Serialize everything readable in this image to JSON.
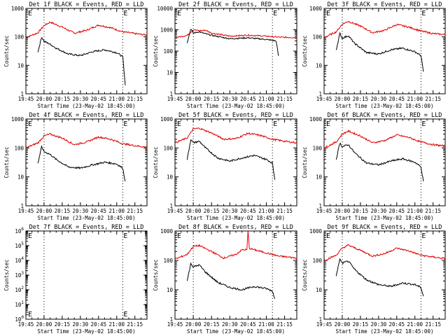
{
  "x_tick_labels": [
    "19:45",
    "20:00",
    "20:15",
    "20:30",
    "20:45",
    "21:00",
    "21:15"
  ],
  "x_axis_label": "Start Time (23-May-02 18:45:00)",
  "colors": {
    "events": "#000000",
    "lld": "#e00000",
    "axes": "#000000",
    "background": "#ffffff"
  },
  "chart_data": [
    {
      "type": "line",
      "title": "Det 1f BLACK = Events, RED = LLD",
      "ylabel": "Counts/sec",
      "yscale": "log",
      "ylim": [
        1,
        1000
      ],
      "y_tick_labels": [
        "1",
        "10",
        "100",
        "1000"
      ],
      "x_range": [
        "19:45",
        "21:25"
      ],
      "vlines": [
        "20:00",
        "21:05"
      ],
      "marker_labels": [
        "E",
        "E"
      ],
      "series": [
        {
          "name": "LLD",
          "color": "#e00000",
          "x": [
            "19:45",
            "19:55",
            "20:00",
            "20:05",
            "20:15",
            "20:25",
            "20:35",
            "20:45",
            "20:55",
            "21:05",
            "21:15",
            "21:25"
          ],
          "y": [
            95,
            140,
            250,
            330,
            220,
            135,
            170,
            260,
            210,
            150,
            130,
            115
          ]
        },
        {
          "name": "Events",
          "color": "#000000",
          "x": [
            "19:55",
            "19:58",
            "20:00",
            "20:05",
            "20:10",
            "20:20",
            "20:30",
            "20:40",
            "20:50",
            "21:00",
            "21:05",
            "21:07"
          ],
          "y": [
            30,
            100,
            70,
            55,
            40,
            25,
            22,
            30,
            35,
            28,
            20,
            2
          ]
        }
      ]
    },
    {
      "type": "line",
      "title": "Det 2f BLACK = Events, RED = LLD",
      "ylabel": "Counts/sec",
      "yscale": "log",
      "ylim": [
        1,
        10000
      ],
      "y_tick_labels": [
        "1",
        "10",
        "100",
        "1000",
        "10000"
      ],
      "x_range": [
        "19:45",
        "21:25"
      ],
      "vlines": [
        "20:00",
        "21:05"
      ],
      "marker_labels": [
        "E",
        "E"
      ],
      "series": [
        {
          "name": "LLD",
          "color": "#e00000",
          "x": [
            "19:45",
            "19:55",
            "20:00",
            "20:05",
            "20:10",
            "20:15",
            "20:30",
            "20:45",
            "21:00",
            "21:10",
            "21:25"
          ],
          "y": [
            420,
            550,
            1000,
            900,
            950,
            700,
            500,
            560,
            500,
            450,
            430
          ]
        },
        {
          "name": "Events",
          "color": "#000000",
          "x": [
            "19:55",
            "19:58",
            "20:00",
            "20:05",
            "20:10",
            "20:15",
            "20:30",
            "20:45",
            "21:00",
            "21:08",
            "21:10"
          ],
          "y": [
            250,
            1100,
            700,
            800,
            650,
            550,
            380,
            420,
            350,
            300,
            60
          ]
        }
      ]
    },
    {
      "type": "line",
      "title": "Det 3f BLACK = Events, RED = LLD",
      "ylabel": "Counts/sec",
      "yscale": "log",
      "ylim": [
        1,
        1000
      ],
      "y_tick_labels": [
        "1",
        "10",
        "100",
        "1000"
      ],
      "x_range": [
        "19:45",
        "21:25"
      ],
      "vlines": [
        "20:00",
        "21:05"
      ],
      "marker_labels": [
        "E",
        "E"
      ],
      "series": [
        {
          "name": "LLD",
          "color": "#e00000",
          "x": [
            "19:45",
            "19:55",
            "20:00",
            "20:05",
            "20:15",
            "20:25",
            "20:35",
            "20:45",
            "20:55",
            "21:05",
            "21:15",
            "21:25"
          ],
          "y": [
            95,
            150,
            280,
            350,
            240,
            140,
            170,
            270,
            220,
            160,
            130,
            120
          ]
        },
        {
          "name": "Events",
          "color": "#000000",
          "x": [
            "19:55",
            "19:58",
            "20:00",
            "20:05",
            "20:10",
            "20:20",
            "20:30",
            "20:40",
            "20:50",
            "21:00",
            "21:05",
            "21:07"
          ],
          "y": [
            35,
            130,
            90,
            110,
            60,
            28,
            25,
            35,
            40,
            30,
            22,
            6
          ]
        }
      ]
    },
    {
      "type": "line",
      "title": "Det 4f BLACK = Events, RED = LLD",
      "ylabel": "Counts/sec",
      "yscale": "log",
      "ylim": [
        1,
        1000
      ],
      "y_tick_labels": [
        "1",
        "10",
        "100",
        "1000"
      ],
      "x_range": [
        "19:45",
        "21:25"
      ],
      "vlines": [
        "20:00",
        "21:05"
      ],
      "marker_labels": [
        "E",
        "E"
      ],
      "series": [
        {
          "name": "LLD",
          "color": "#e00000",
          "x": [
            "19:45",
            "19:55",
            "20:00",
            "20:05",
            "20:15",
            "20:25",
            "20:35",
            "20:45",
            "20:55",
            "21:05",
            "21:15",
            "21:25"
          ],
          "y": [
            100,
            150,
            260,
            300,
            220,
            130,
            160,
            240,
            200,
            140,
            120,
            105
          ]
        },
        {
          "name": "Events",
          "color": "#000000",
          "x": [
            "19:55",
            "19:58",
            "20:00",
            "20:05",
            "20:10",
            "20:20",
            "20:30",
            "20:40",
            "20:50",
            "21:00",
            "21:05",
            "21:07"
          ],
          "y": [
            30,
            110,
            75,
            60,
            40,
            22,
            20,
            26,
            32,
            28,
            20,
            7
          ]
        }
      ]
    },
    {
      "type": "line",
      "title": "Det 5f BLACK = Events, RED = LLD",
      "ylabel": "Counts/sec",
      "yscale": "log",
      "ylim": [
        1,
        1000
      ],
      "y_tick_labels": [
        "1",
        "10",
        "100",
        "1000"
      ],
      "x_range": [
        "19:45",
        "21:25"
      ],
      "vlines": [
        "20:00",
        "21:05"
      ],
      "marker_labels": [
        "E",
        "E"
      ],
      "series": [
        {
          "name": "LLD",
          "color": "#e00000",
          "x": [
            "19:45",
            "19:55",
            "20:00",
            "20:05",
            "20:15",
            "20:25",
            "20:35",
            "20:45",
            "20:55",
            "21:05",
            "21:15",
            "21:25"
          ],
          "y": [
            150,
            220,
            450,
            480,
            330,
            200,
            210,
            320,
            270,
            200,
            170,
            150
          ]
        },
        {
          "name": "Events",
          "color": "#000000",
          "x": [
            "19:55",
            "19:58",
            "20:00",
            "20:05",
            "20:10",
            "20:20",
            "20:30",
            "20:40",
            "20:50",
            "21:00",
            "21:05",
            "21:07"
          ],
          "y": [
            40,
            200,
            150,
            170,
            100,
            45,
            35,
            45,
            55,
            40,
            30,
            8
          ]
        }
      ]
    },
    {
      "type": "line",
      "title": "Det 6f BLACK = Events, RED = LLD",
      "ylabel": "Counts/sec",
      "yscale": "log",
      "ylim": [
        1,
        1000
      ],
      "y_tick_labels": [
        "1",
        "10",
        "100",
        "1000"
      ],
      "x_range": [
        "19:45",
        "21:25"
      ],
      "vlines": [
        "20:00",
        "21:05"
      ],
      "marker_labels": [
        "E",
        "E"
      ],
      "series": [
        {
          "name": "LLD",
          "color": "#e00000",
          "x": [
            "19:45",
            "19:55",
            "20:00",
            "20:05",
            "20:15",
            "20:25",
            "20:35",
            "20:45",
            "20:55",
            "21:05",
            "21:15",
            "21:25"
          ],
          "y": [
            100,
            160,
            300,
            380,
            260,
            150,
            180,
            280,
            230,
            160,
            130,
            115
          ]
        },
        {
          "name": "Events",
          "color": "#000000",
          "x": [
            "19:55",
            "19:58",
            "20:00",
            "20:05",
            "20:10",
            "20:20",
            "20:30",
            "20:40",
            "20:50",
            "21:00",
            "21:05",
            "21:07"
          ],
          "y": [
            40,
            150,
            110,
            130,
            70,
            30,
            26,
            35,
            42,
            32,
            22,
            7
          ]
        }
      ]
    },
    {
      "type": "line",
      "title": "Det 7f BLACK = Events, RED = LLD",
      "ylabel": "Counts/sec",
      "yscale": "log",
      "ylim": [
        1,
        1000000
      ],
      "y_tick_labels": [
        "10^0",
        "10^1",
        "10^2",
        "10^3",
        "10^4",
        "10^5",
        "10^6"
      ],
      "x_range": [
        "19:45",
        "21:25"
      ],
      "vlines": [
        "20:00",
        "21:05"
      ],
      "marker_labels": [
        "E",
        "E"
      ],
      "series": []
    },
    {
      "type": "line",
      "title": "Det 8f BLACK = Events, RED = LLD",
      "ylabel": "Counts/sec",
      "yscale": "log",
      "ylim": [
        1,
        1000
      ],
      "y_tick_labels": [
        "1",
        "10",
        "100",
        "1000"
      ],
      "x_range": [
        "19:45",
        "21:25"
      ],
      "vlines": [
        "20:00",
        "21:05"
      ],
      "marker_labels": [
        "E",
        "E"
      ],
      "series": [
        {
          "name": "LLD",
          "color": "#e00000",
          "x": [
            "19:45",
            "19:55",
            "20:00",
            "20:05",
            "20:15",
            "20:25",
            "20:35",
            "20:40",
            "20:44",
            "20:45",
            "20:46",
            "20:50",
            "21:00",
            "21:10",
            "21:25"
          ],
          "y": [
            110,
            160,
            300,
            320,
            200,
            120,
            160,
            230,
            230,
            1000,
            260,
            230,
            180,
            140,
            120
          ]
        },
        {
          "name": "Events",
          "color": "#000000",
          "x": [
            "19:55",
            "19:58",
            "20:00",
            "20:05",
            "20:10",
            "20:20",
            "20:30",
            "20:40",
            "20:50",
            "21:00",
            "21:05",
            "21:07"
          ],
          "y": [
            20,
            80,
            60,
            70,
            40,
            18,
            12,
            10,
            13,
            11,
            9,
            5
          ]
        }
      ]
    },
    {
      "type": "line",
      "title": "Det 9f BLACK = Events, RED = LLD",
      "ylabel": "Counts/sec",
      "yscale": "log",
      "ylim": [
        1,
        1000
      ],
      "y_tick_labels": [
        "1",
        "10",
        "100",
        "1000"
      ],
      "x_range": [
        "19:45",
        "21:25"
      ],
      "vlines": [
        "20:00",
        "21:05"
      ],
      "marker_labels": [
        "E",
        "E"
      ],
      "series": [
        {
          "name": "LLD",
          "color": "#e00000",
          "x": [
            "19:45",
            "19:55",
            "20:00",
            "20:05",
            "20:15",
            "20:25",
            "20:35",
            "20:45",
            "20:55",
            "21:05",
            "21:15",
            "21:25"
          ],
          "y": [
            100,
            150,
            260,
            330,
            220,
            140,
            170,
            260,
            210,
            150,
            130,
            115
          ]
        },
        {
          "name": "Events",
          "color": "#000000",
          "x": [
            "19:55",
            "19:58",
            "20:00",
            "20:05",
            "20:10",
            "20:20",
            "20:30",
            "20:40",
            "20:50",
            "21:00",
            "21:05",
            "21:07"
          ],
          "y": [
            30,
            110,
            80,
            95,
            50,
            22,
            15,
            13,
            17,
            15,
            12,
            6
          ]
        }
      ]
    }
  ]
}
